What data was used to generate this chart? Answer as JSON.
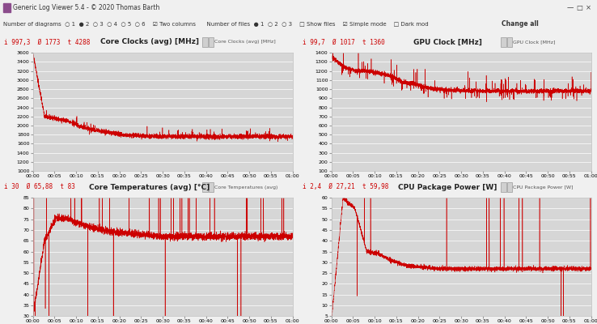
{
  "app_title": "Generic Log Viewer 5.4 - © 2020 Thomas Barth",
  "toolbar_left": "Number of diagrams  ○ 1  ● 2  ○ 3  ○ 4  ○ 5  ○ 6    ☑ Two columns      Number of files  ● 1  ○ 2  ○ 3    □ Show files    ☑ Simple mode    □ Dark mod",
  "toolbar_right": "Change all",
  "plots": [
    {
      "title": "Core Clocks (avg) [MHz]",
      "stats": "i 997,3",
      "stats_avg": "Ø 1773",
      "stats_max": "t 4288",
      "dropdown": "Core Clocks (avg) [MHz]",
      "ymin": 1000,
      "ymax": 3600,
      "ystep": 200,
      "line_color": "#cc0000",
      "phases": [
        3600,
        3400,
        2150,
        2150,
        2150,
        2100,
        1950,
        1900,
        1850,
        1800,
        1770,
        1760,
        1760,
        1760,
        1760,
        1760,
        1760,
        1760,
        1760,
        1760,
        1760,
        1760
      ]
    },
    {
      "title": "GPU Clock [MHz]",
      "stats": "i 99,7",
      "stats_avg": "Ø 1017",
      "stats_max": "t 1360",
      "dropdown": "GPU Clock [MHz]",
      "ymin": 100,
      "ymax": 1400,
      "ystep": 100,
      "line_color": "#cc0000",
      "phases": [
        1360,
        1300,
        1200,
        1200,
        1150,
        1080,
        1040,
        1010,
        990,
        980,
        980,
        980,
        980,
        980,
        980,
        980,
        980,
        980,
        980,
        980,
        980,
        980
      ]
    },
    {
      "title": "Core Temperatures (avg) [°C]",
      "stats": "i 30",
      "stats_avg": "Ø 65,88",
      "stats_max": "t 83",
      "dropdown": "Core Temperatures (avg)",
      "ymin": 30,
      "ymax": 85,
      "ystep": 5,
      "line_color": "#cc0000",
      "phases": [
        30,
        50,
        75,
        78,
        76,
        74,
        72,
        70,
        69,
        68,
        67,
        67,
        67,
        67,
        67,
        67,
        67,
        67,
        67,
        67,
        67,
        67
      ]
    },
    {
      "title": "CPU Package Power [W]",
      "stats": "i 2,4",
      "stats_avg": "Ø 27,21",
      "stats_max": "t 59,98",
      "dropdown": "CPU Package Power [W]",
      "ymin": 5,
      "ymax": 60,
      "ystep": 5,
      "line_color": "#cc0000",
      "phases": [
        2.4,
        60,
        55,
        35,
        35,
        30,
        28,
        27,
        27,
        27,
        27,
        27,
        27,
        27,
        27,
        27,
        27,
        27,
        27,
        27,
        27,
        27
      ]
    }
  ],
  "x_labels": [
    "00:00",
    "00:05",
    "00:10",
    "00:15",
    "00:20",
    "00:25",
    "00:30",
    "00:35",
    "00:40",
    "00:45",
    "00:50",
    "00:55",
    "01:00"
  ],
  "n_points": 3720,
  "bg_toolbar": "#f0f0f0",
  "bg_titlebar": "#f5f5f5",
  "bg_header": "#eaeaea",
  "bg_plot": "#d6d6d6",
  "grid_color": "#ffffff",
  "tick_color": "#444444",
  "title_color": "#222222",
  "stats_color": "#cc0000",
  "border_color": "#bbbbbb"
}
